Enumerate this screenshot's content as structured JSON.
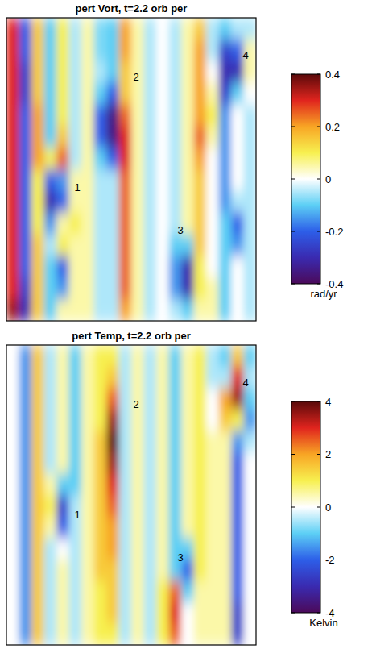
{
  "chart_data": [
    {
      "type": "heatmap",
      "title": "pert Vort, t=2.2 orb per",
      "tick_labels": false,
      "color_range": [
        -0.4,
        0.4
      ],
      "color_ticks": [
        -0.4,
        -0.2,
        0,
        0.2,
        0.4
      ],
      "color_label": "rad/yr",
      "annotations": [
        "1",
        "2",
        "3",
        "4"
      ],
      "cells": [
        [
          0.3,
          -0.2,
          0.15,
          -0.1,
          0.1,
          -0.05,
          0.05,
          -0.08,
          -0.1,
          0.2,
          0.05,
          -0.05,
          0,
          -0.05,
          0.05,
          0.15,
          -0.05,
          -0.1,
          -0.05,
          -0.05
        ],
        [
          0.3,
          -0.2,
          0.15,
          -0.1,
          0.1,
          -0.05,
          0.05,
          -0.08,
          -0.1,
          0.2,
          0.05,
          -0.05,
          0,
          -0.05,
          0.05,
          0.2,
          -0.05,
          -0.25,
          -0.2,
          0.05
        ],
        [
          0.3,
          -0.25,
          0.15,
          -0.1,
          0.1,
          -0.05,
          0.05,
          -0.05,
          -0.1,
          0.15,
          0.05,
          -0.05,
          0,
          -0.05,
          0.05,
          0.2,
          0,
          -0.3,
          -0.3,
          0.05
        ],
        [
          0.3,
          -0.25,
          0.15,
          -0.1,
          0.1,
          -0.05,
          0.05,
          -0.1,
          -0.2,
          0.15,
          0.05,
          -0.05,
          0,
          -0.05,
          0.05,
          0.2,
          0.05,
          -0.25,
          -0.1,
          0
        ],
        [
          0.3,
          -0.2,
          0.2,
          -0.1,
          0.1,
          -0.05,
          0.05,
          -0.2,
          -0.35,
          0.25,
          0.05,
          -0.05,
          0,
          -0.05,
          0.05,
          0.2,
          0.1,
          -0.15,
          0,
          -0.05
        ],
        [
          0.3,
          -0.2,
          0.2,
          -0.1,
          0.15,
          -0.05,
          0.05,
          -0.2,
          -0.35,
          0.3,
          0.05,
          -0.05,
          0,
          -0.05,
          0.05,
          0.25,
          0.05,
          -0.15,
          0,
          -0.05
        ],
        [
          0.3,
          -0.2,
          0.2,
          0.1,
          0.25,
          -0.05,
          0.05,
          -0.1,
          -0.2,
          0.3,
          0.05,
          -0.05,
          0,
          -0.05,
          0.05,
          0.2,
          0,
          -0.15,
          0,
          -0.05
        ],
        [
          0.3,
          -0.2,
          0.1,
          -0.2,
          -0.15,
          0.05,
          0.05,
          -0.05,
          -0.05,
          0.25,
          0.05,
          -0.05,
          0,
          -0.05,
          0.05,
          0.15,
          0,
          -0.15,
          0,
          -0.05
        ],
        [
          0.3,
          -0.2,
          0.1,
          -0.3,
          -0.2,
          0.05,
          0.05,
          -0.05,
          -0.05,
          0.25,
          0.05,
          -0.05,
          0,
          -0.05,
          0.05,
          0.15,
          0,
          -0.15,
          -0.05,
          -0.05
        ],
        [
          0.3,
          -0.2,
          0.1,
          -0.15,
          0.05,
          0.1,
          0.05,
          -0.05,
          -0.05,
          0.25,
          0.05,
          -0.05,
          0,
          -0.05,
          0.05,
          0.15,
          0,
          -0.1,
          -0.2,
          -0.05
        ],
        [
          0.3,
          -0.2,
          0.15,
          -0.05,
          0.1,
          0.05,
          0.05,
          -0.05,
          -0.05,
          0.25,
          0.05,
          -0.05,
          0,
          -0.1,
          -0.1,
          0.15,
          0,
          -0.1,
          -0.15,
          -0.05
        ],
        [
          0.3,
          -0.2,
          0.15,
          -0.1,
          -0.2,
          0.05,
          0.05,
          -0.05,
          -0.05,
          0.25,
          0.05,
          -0.05,
          0,
          -0.15,
          -0.3,
          0.1,
          0,
          -0.1,
          0,
          -0.05
        ],
        [
          0.3,
          -0.25,
          0.15,
          -0.1,
          -0.15,
          0.05,
          0.05,
          -0.05,
          -0.05,
          0.25,
          0.05,
          -0.05,
          0,
          -0.15,
          -0.3,
          0.1,
          0.05,
          -0.1,
          0,
          -0.05
        ],
        [
          0.35,
          -0.3,
          0.15,
          -0.1,
          0.05,
          0.05,
          0.05,
          -0.05,
          -0.05,
          0.2,
          0.05,
          -0.05,
          0,
          -0.05,
          -0.1,
          0.05,
          0.05,
          -0.1,
          0,
          -0.05
        ]
      ]
    },
    {
      "type": "heatmap",
      "title": "pert Temp, t=2.2 orb per",
      "tick_labels": false,
      "color_range": [
        -4,
        4
      ],
      "color_ticks": [
        -4,
        -2,
        0,
        2,
        4
      ],
      "color_label": "Kelvin",
      "annotations": [
        "1",
        "2",
        "3",
        "4"
      ],
      "cells": [
        [
          0,
          -1.5,
          1.5,
          -0.5,
          0.5,
          -1,
          0.5,
          1,
          1,
          -0.5,
          0.5,
          -0.5,
          0.5,
          -1,
          0.5,
          1,
          -0.5,
          -1,
          1.5,
          -1
        ],
        [
          0,
          -1.5,
          1.5,
          -0.5,
          0.5,
          -1,
          0.5,
          1,
          1.5,
          -0.5,
          0.5,
          -0.5,
          0.5,
          -1,
          0.5,
          1,
          -0.5,
          -0.5,
          3,
          -0.5
        ],
        [
          0,
          -1.5,
          1.5,
          -0.5,
          0.5,
          -1,
          0.5,
          1,
          2.5,
          -0.5,
          0.5,
          -0.5,
          0.5,
          -1,
          0.5,
          1,
          0,
          2,
          3.5,
          -1
        ],
        [
          0,
          -1.5,
          1.5,
          -0.5,
          0.5,
          -1,
          0.5,
          1,
          3.5,
          -0.5,
          0.5,
          -0.5,
          0.5,
          -1,
          0.5,
          1,
          0,
          1.5,
          1,
          -1.5
        ],
        [
          0,
          -1.5,
          1.5,
          -0.5,
          0.5,
          -1,
          0.5,
          1.5,
          4,
          -0.5,
          0.5,
          -0.5,
          0.5,
          -1,
          0.5,
          1,
          0.5,
          0.5,
          -1.5,
          -0.5
        ],
        [
          0,
          -1.5,
          1.5,
          -0.5,
          0.5,
          -1,
          0.5,
          1.5,
          3.5,
          -0.5,
          0.5,
          -0.5,
          0.5,
          -1,
          0.5,
          1,
          0.5,
          0.5,
          -2,
          0
        ],
        [
          0,
          -1.5,
          1.5,
          0.5,
          -1,
          -1,
          0.5,
          1.5,
          3,
          -0.5,
          0.5,
          -0.5,
          0.5,
          -1,
          0.5,
          1,
          0.5,
          0.5,
          -2,
          0
        ],
        [
          0,
          -1.5,
          1.5,
          1,
          -2.5,
          -0.5,
          0.5,
          1.5,
          2.5,
          -0.5,
          0.5,
          -0.5,
          0.5,
          -1,
          0.5,
          1,
          0.5,
          0.5,
          -2,
          0
        ],
        [
          0,
          -1.5,
          1.5,
          0.5,
          -2,
          -0.5,
          0.5,
          1.5,
          2,
          -0.5,
          0.5,
          -0.5,
          0.5,
          -1,
          0.5,
          1,
          0.5,
          0.5,
          -2,
          0
        ],
        [
          0,
          -1.5,
          1.5,
          -0.5,
          0,
          -0.5,
          0.5,
          1.5,
          2,
          -0.5,
          0.5,
          -0.5,
          0.5,
          -1,
          -1,
          1,
          0.5,
          0.5,
          -2,
          0
        ],
        [
          0,
          -1.5,
          1.5,
          -0.5,
          0.5,
          -0.5,
          0.5,
          1.5,
          1.5,
          -0.5,
          0.5,
          -0.5,
          0.5,
          -1,
          -2,
          1,
          0.5,
          0.5,
          -2,
          0
        ],
        [
          0,
          -1.5,
          1.5,
          -0.5,
          0.5,
          -0.5,
          0.5,
          1,
          1.5,
          -0.5,
          0.5,
          -0.5,
          1,
          2.5,
          -1,
          0.5,
          0.5,
          0.5,
          -2,
          0
        ],
        [
          0,
          -1.5,
          1.5,
          -0.5,
          0.5,
          -0.5,
          0.5,
          1,
          1.5,
          -0.5,
          0.5,
          -0.5,
          1,
          3,
          0,
          0.5,
          0.5,
          0.5,
          -2.5,
          0
        ],
        [
          0,
          -1.5,
          1.5,
          -0.5,
          0.5,
          -0.5,
          0.5,
          1,
          1,
          -0.5,
          0.5,
          -0.5,
          1,
          2.5,
          0,
          0.5,
          0.5,
          0.5,
          -2.5,
          0
        ]
      ]
    }
  ]
}
